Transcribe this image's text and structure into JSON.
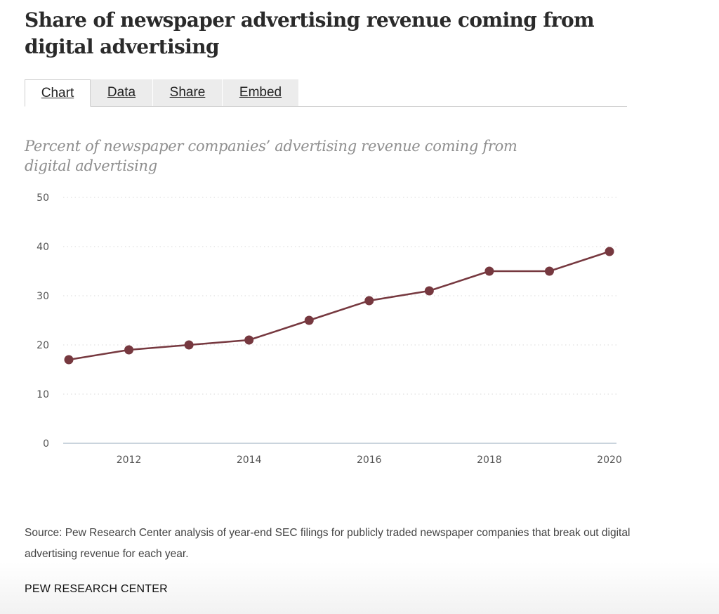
{
  "title": "Share of newspaper advertising revenue coming from digital advertising",
  "tabs": [
    {
      "label": "Chart",
      "active": true
    },
    {
      "label": "Data",
      "active": false
    },
    {
      "label": "Share",
      "active": false
    },
    {
      "label": "Embed",
      "active": false
    }
  ],
  "subtitle": "Percent of newspaper companies’ advertising revenue coming from digital advertising",
  "source": "Source: Pew Research Center analysis of year-end SEC filings for publicly traded newspaper companies that break out digital advertising revenue for each year.",
  "brand": "PEW RESEARCH CENTER",
  "colors": {
    "line": "#76383f",
    "grid": "#d9d9d9",
    "baseline": "#b9c6d2"
  },
  "chart_data": {
    "type": "line",
    "x": [
      2011,
      2012,
      2013,
      2014,
      2015,
      2016,
      2017,
      2018,
      2019,
      2020
    ],
    "series": [
      {
        "values": [
          17,
          19,
          20,
          21,
          25,
          29,
          31,
          35,
          35,
          39
        ]
      }
    ],
    "xlim": [
      2011,
      2020
    ],
    "ylim": [
      0,
      50
    ],
    "yticks": [
      0,
      10,
      20,
      30,
      40,
      50
    ],
    "xticks": [
      2012,
      2014,
      2016,
      2018,
      2020
    ],
    "grid": true,
    "markers": true
  }
}
